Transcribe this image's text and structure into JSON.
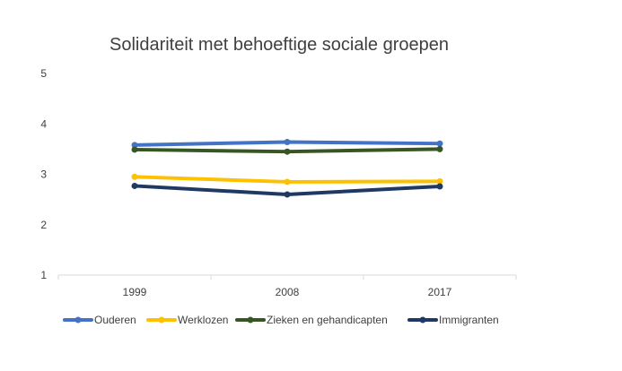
{
  "chart_data": {
    "type": "line",
    "title": "Solidariteit met behoeftige sociale groepen",
    "categories": [
      "1999",
      "2008",
      "2017"
    ],
    "ylim": [
      1,
      5
    ],
    "yticks": [
      1,
      2,
      3,
      4,
      5
    ],
    "grid": false,
    "legend_position": "bottom",
    "series": [
      {
        "name": "Ouderen",
        "values": [
          3.58,
          3.64,
          3.61
        ],
        "color": "#4472C4"
      },
      {
        "name": "Werklozen",
        "values": [
          2.95,
          2.85,
          2.86
        ],
        "color": "#FFC000"
      },
      {
        "name": "Zieken en gehandicapten",
        "values": [
          3.49,
          3.45,
          3.5
        ],
        "color": "#375623"
      },
      {
        "name": "Immigranten",
        "values": [
          2.77,
          2.6,
          2.76
        ],
        "color": "#203864"
      }
    ]
  }
}
